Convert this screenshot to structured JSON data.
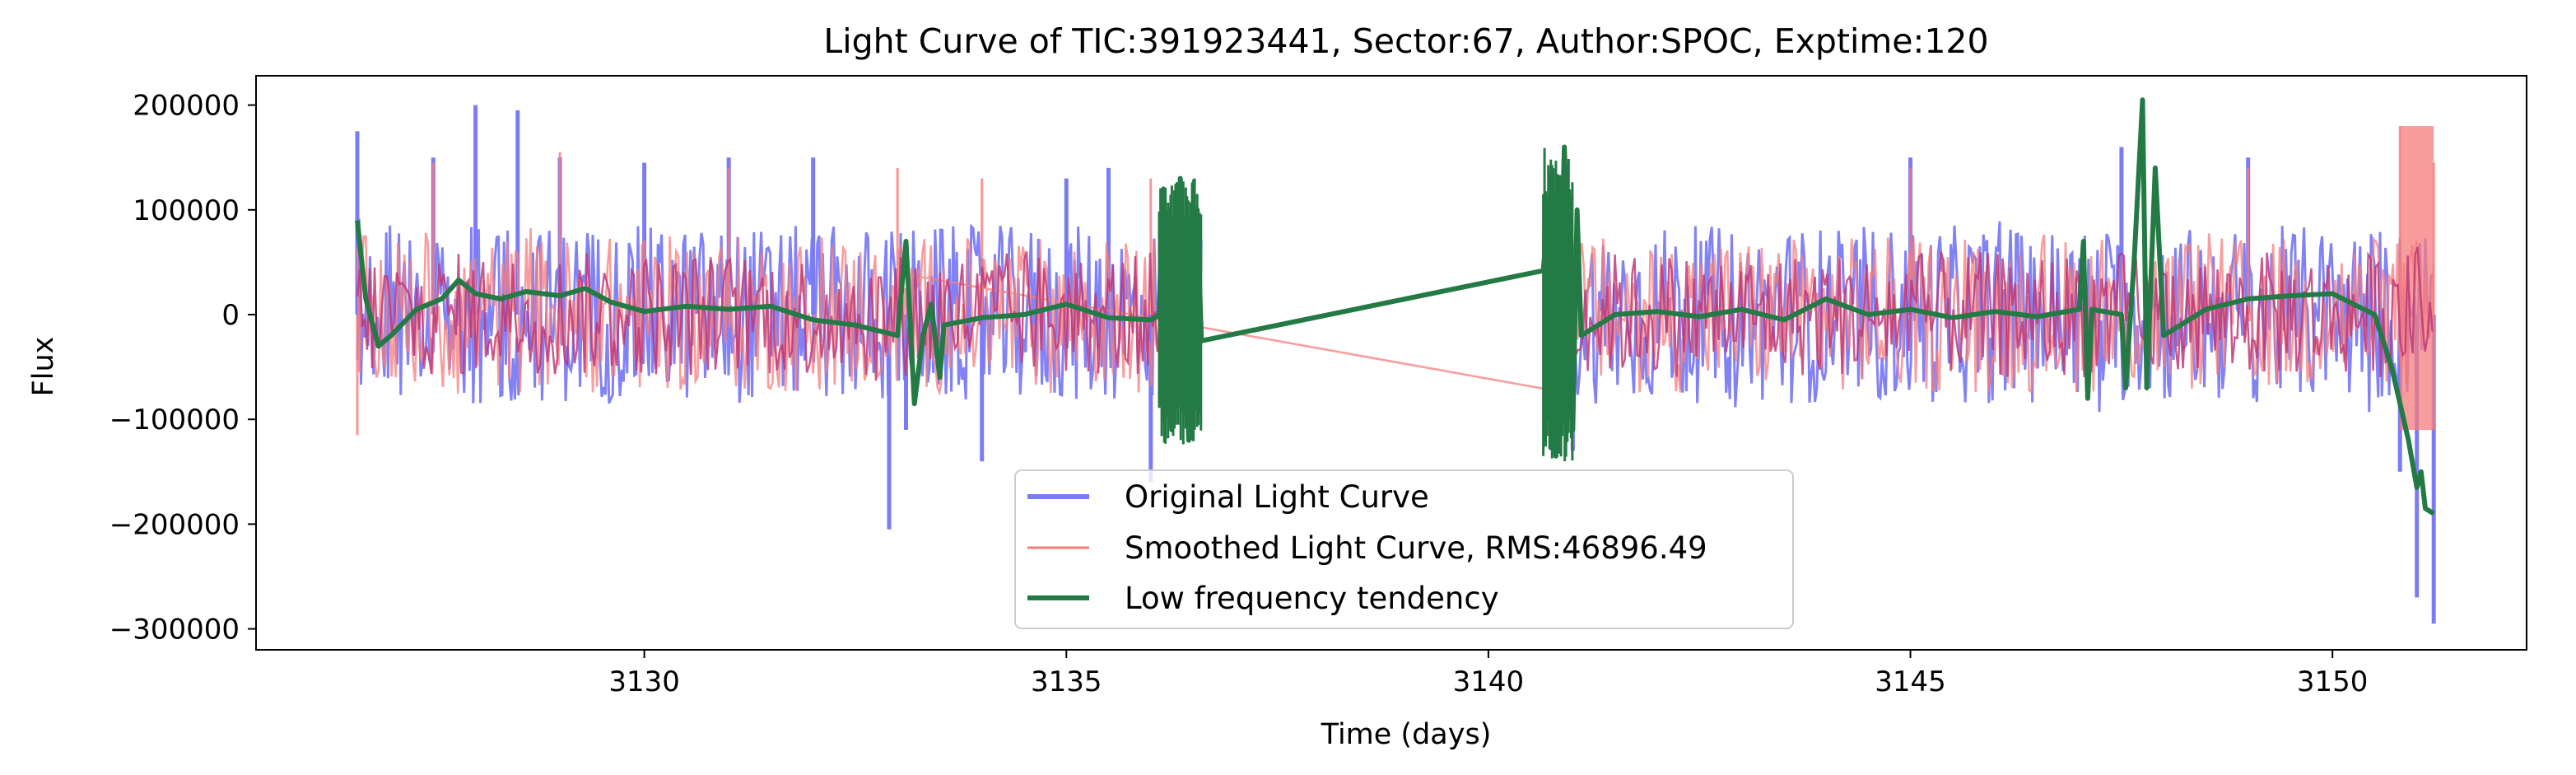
{
  "chart_data": {
    "type": "line",
    "title": "Light Curve of TIC:391923441, Sector:67, Author:SPOC, Exptime:120",
    "xlabel": "Time (days)",
    "ylabel": "Flux",
    "xlim": [
      3125.4,
      3152.3
    ],
    "ylim": [
      -320000,
      228000
    ],
    "xticks": [
      3130,
      3135,
      3140,
      3145,
      3150
    ],
    "xtick_labels": [
      "3130",
      "3135",
      "3140",
      "3145",
      "3150"
    ],
    "yticks": [
      200000,
      100000,
      0,
      -100000,
      -200000,
      -300000
    ],
    "ytick_labels": [
      "200000",
      "100000",
      "0",
      "−100000",
      "−200000",
      "−300000"
    ],
    "grid": false,
    "legend_position": "lower-center",
    "segments": [
      [
        3126.6,
        3136.6
      ],
      [
        3140.65,
        3151.2
      ]
    ],
    "series": [
      {
        "name": "Original Light Curve",
        "color": "#7b7bf7",
        "noise_amplitude": 85000,
        "points": [
          [
            3126.6,
            175000
          ],
          [
            3127.5,
            150000
          ],
          [
            3128.0,
            200000
          ],
          [
            3128.5,
            195000
          ],
          [
            3129.0,
            150000
          ],
          [
            3130.0,
            145000
          ],
          [
            3131.0,
            150000
          ],
          [
            3132.0,
            150000
          ],
          [
            3132.9,
            -205000
          ],
          [
            3133.1,
            -110000
          ],
          [
            3134.0,
            -140000
          ],
          [
            3135.0,
            130000
          ],
          [
            3135.5,
            140000
          ],
          [
            3136.0,
            -160000
          ],
          [
            3141.0,
            -130000
          ],
          [
            3145.0,
            150000
          ],
          [
            3147.5,
            160000
          ],
          [
            3149.0,
            150000
          ],
          [
            3150.8,
            -150000
          ],
          [
            3151.0,
            -270000
          ],
          [
            3151.2,
            -295000
          ]
        ]
      },
      {
        "name": "Smoothed Light Curve, RMS:46896.49",
        "color": "#f67c7c",
        "noise_amplitude": 75000,
        "points": [
          [
            3126.6,
            -115000
          ],
          [
            3127.5,
            145000
          ],
          [
            3129.0,
            155000
          ],
          [
            3131.0,
            140000
          ],
          [
            3133.0,
            140000
          ],
          [
            3134.0,
            130000
          ],
          [
            3136.0,
            130000
          ],
          [
            3141.0,
            -125000
          ],
          [
            3145.0,
            140000
          ],
          [
            3149.0,
            140000
          ],
          [
            3150.8,
            180000
          ],
          [
            3151.2,
            145000
          ],
          [
            3151.2,
            -110000
          ]
        ]
      },
      {
        "name": "Low frequency tendency",
        "color": "#237a44",
        "points": [
          [
            3126.6,
            90000
          ],
          [
            3126.7,
            15000
          ],
          [
            3126.85,
            -30000
          ],
          [
            3127.0,
            -20000
          ],
          [
            3127.3,
            5000
          ],
          [
            3127.6,
            15000
          ],
          [
            3127.8,
            33000
          ],
          [
            3128.0,
            20000
          ],
          [
            3128.3,
            15000
          ],
          [
            3128.6,
            22000
          ],
          [
            3129.0,
            18000
          ],
          [
            3129.3,
            25000
          ],
          [
            3129.6,
            12000
          ],
          [
            3130.0,
            3000
          ],
          [
            3130.5,
            8000
          ],
          [
            3131.0,
            5000
          ],
          [
            3131.5,
            8000
          ],
          [
            3132.0,
            -5000
          ],
          [
            3132.5,
            -10000
          ],
          [
            3133.0,
            -20000
          ],
          [
            3133.1,
            70000
          ],
          [
            3133.2,
            -85000
          ],
          [
            3133.3,
            -20000
          ],
          [
            3133.4,
            10000
          ],
          [
            3133.5,
            -60000
          ],
          [
            3133.55,
            -10000
          ],
          [
            3134.0,
            -3000
          ],
          [
            3134.5,
            0
          ],
          [
            3135.0,
            10000
          ],
          [
            3135.5,
            -3000
          ],
          [
            3136.0,
            -5000
          ],
          [
            3136.1,
            0
          ],
          [
            3136.15,
            120000
          ],
          [
            3136.25,
            -110000
          ],
          [
            3136.35,
            130000
          ],
          [
            3136.45,
            -120000
          ],
          [
            3136.55,
            100000
          ],
          [
            3136.6,
            -25000
          ],
          [
            3140.65,
            42000
          ],
          [
            3140.7,
            90000
          ],
          [
            3140.8,
            -135000
          ],
          [
            3140.9,
            160000
          ],
          [
            3141.0,
            -110000
          ],
          [
            3141.05,
            100000
          ],
          [
            3141.1,
            -20000
          ],
          [
            3141.5,
            0
          ],
          [
            3142.0,
            3000
          ],
          [
            3142.5,
            -2000
          ],
          [
            3143.0,
            5000
          ],
          [
            3143.5,
            -5000
          ],
          [
            3144.0,
            15000
          ],
          [
            3144.5,
            0
          ],
          [
            3145.0,
            5000
          ],
          [
            3145.5,
            -3000
          ],
          [
            3146.0,
            3000
          ],
          [
            3146.5,
            -2000
          ],
          [
            3147.0,
            5000
          ],
          [
            3147.05,
            70000
          ],
          [
            3147.1,
            -80000
          ],
          [
            3147.15,
            5000
          ],
          [
            3147.5,
            0
          ],
          [
            3147.55,
            -70000
          ],
          [
            3147.65,
            50000
          ],
          [
            3147.75,
            205000
          ],
          [
            3147.8,
            -70000
          ],
          [
            3147.9,
            140000
          ],
          [
            3148.0,
            -20000
          ],
          [
            3148.5,
            5000
          ],
          [
            3149.0,
            15000
          ],
          [
            3149.5,
            18000
          ],
          [
            3150.0,
            20000
          ],
          [
            3150.5,
            0
          ],
          [
            3150.7,
            -50000
          ],
          [
            3150.9,
            -120000
          ],
          [
            3151.0,
            -165000
          ],
          [
            3151.05,
            -150000
          ],
          [
            3151.1,
            -185000
          ],
          [
            3151.2,
            -190000
          ]
        ]
      }
    ]
  }
}
